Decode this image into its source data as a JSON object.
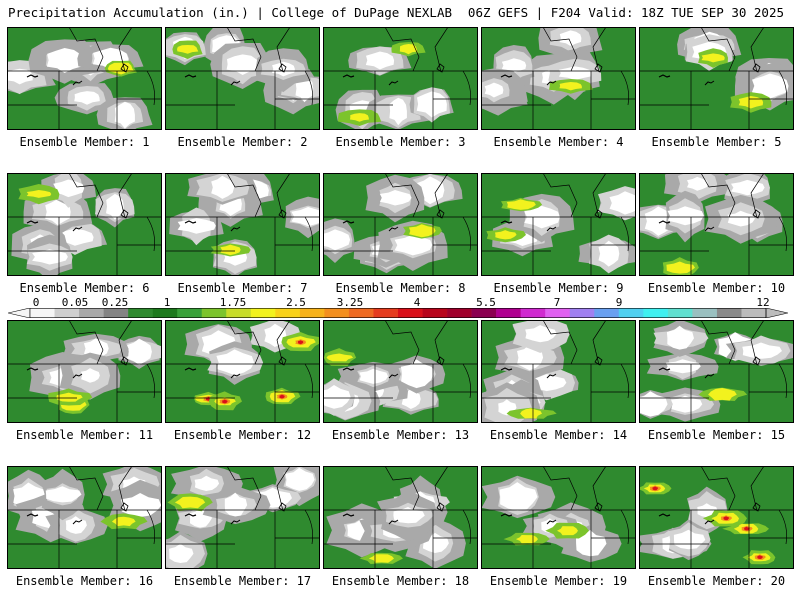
{
  "header": {
    "left": "Precipitation Accumulation (in.) | College of DuPage NEXLAB",
    "right": "06Z GEFS | F204 Valid: 18Z TUE SEP 30 2025"
  },
  "colorbar": {
    "tick_labels": [
      "0",
      "0.05",
      "0.25",
      "1",
      "1.75",
      "2.5",
      "3.25",
      "4",
      "5.5",
      "7",
      "9",
      "12"
    ],
    "colors": [
      "#f6f6f6",
      "#cfcfcf",
      "#a9a9a9",
      "#848484",
      "#2f8a2f",
      "#1e7a1e",
      "#3aa13a",
      "#7cc42c",
      "#c8dc2a",
      "#f2f21e",
      "#f8d21a",
      "#f7b21b",
      "#f38f1e",
      "#ee6a22",
      "#e53c1f",
      "#d9101a",
      "#b8051c",
      "#a0002c",
      "#8b0050",
      "#b00090",
      "#d02ad0",
      "#e060f0",
      "#a080f0",
      "#6aa0f0",
      "#50d0f0",
      "#40f0f0",
      "#60e0d0",
      "#9ac0c0",
      "#8a8a8a",
      "#bcbcbc"
    ]
  },
  "panels": [
    {
      "label": "Ensemble Member: 1",
      "precip_level": "light"
    },
    {
      "label": "Ensemble Member: 2",
      "precip_level": "light"
    },
    {
      "label": "Ensemble Member: 3",
      "precip_level": "moderate"
    },
    {
      "label": "Ensemble Member: 4",
      "precip_level": "light"
    },
    {
      "label": "Ensemble Member: 5",
      "precip_level": "moderate"
    },
    {
      "label": "Ensemble Member: 6",
      "precip_level": "light"
    },
    {
      "label": "Ensemble Member: 7",
      "precip_level": "light"
    },
    {
      "label": "Ensemble Member: 8",
      "precip_level": "light"
    },
    {
      "label": "Ensemble Member: 9",
      "precip_level": "moderate"
    },
    {
      "label": "Ensemble Member: 10",
      "precip_level": "light"
    },
    {
      "label": "Ensemble Member: 11",
      "precip_level": "moderate"
    },
    {
      "label": "Ensemble Member: 12",
      "precip_level": "heavy"
    },
    {
      "label": "Ensemble Member: 13",
      "precip_level": "light"
    },
    {
      "label": "Ensemble Member: 14",
      "precip_level": "light"
    },
    {
      "label": "Ensemble Member: 15",
      "precip_level": "light"
    },
    {
      "label": "Ensemble Member: 16",
      "precip_level": "light"
    },
    {
      "label": "Ensemble Member: 17",
      "precip_level": "light"
    },
    {
      "label": "Ensemble Member: 18",
      "precip_level": "light"
    },
    {
      "label": "Ensemble Member: 19",
      "precip_level": "moderate"
    },
    {
      "label": "Ensemble Member: 20",
      "precip_level": "heavy"
    }
  ]
}
